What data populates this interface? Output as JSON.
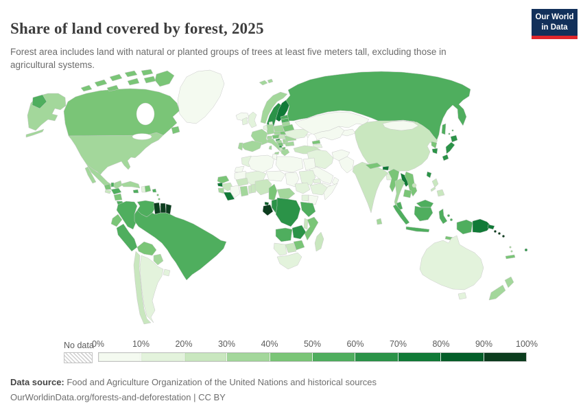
{
  "header": {
    "title": "Share of land covered by forest, 2025",
    "subtitle": "Forest area includes land with natural or planted groups of trees at least five meters tall, excluding those in agricultural systems.",
    "logo": {
      "line1": "Our World",
      "line2": "in Data",
      "bg": "#12305a",
      "accent": "#e0262b"
    }
  },
  "legend": {
    "no_data_label": "No data",
    "ticks": [
      "0%",
      "10%",
      "20%",
      "30%",
      "40%",
      "50%",
      "60%",
      "70%",
      "80%",
      "90%",
      "100%"
    ]
  },
  "footer": {
    "source_label": "Data source:",
    "source_text": " Food and Agriculture Organization of the United Nations and historical sources",
    "link_text": "OurWorldinData.org/forests-and-deforestation | CC BY"
  },
  "chart_data": {
    "type": "choropleth",
    "title": "Share of land covered by forest",
    "year": 2025,
    "unit": "% of land area",
    "bin_edges": [
      0,
      10,
      20,
      30,
      40,
      50,
      60,
      70,
      80,
      90,
      100
    ],
    "bin_colors": [
      "#f4faf0",
      "#e3f3dc",
      "#c9e7bf",
      "#a3d79b",
      "#7ac577",
      "#4fae5e",
      "#2b9348",
      "#117a37",
      "#045e29",
      "#0c3d1e"
    ],
    "no_data_color": "hatched-gray",
    "border_color": "#c9c9c9",
    "countries": {
      "Greenland": 0.5,
      "Canada": 41,
      "United States": 34,
      "Mexico": 34,
      "Guatemala": 43,
      "Belize": 56,
      "Honduras": 57,
      "El Salvador": 28,
      "Nicaragua": 42,
      "Costa Rica": 59,
      "Panama": 62,
      "Cuba": 31,
      "Jamaica": 55,
      "Haiti": 13,
      "Dominican Republic": 44,
      "Puerto Rico": 56,
      "Trinidad and Tobago": 44,
      "Colombia": 53,
      "Venezuela": 52,
      "Guyana": 93,
      "Suriname": 97,
      "French Guiana": 96,
      "Ecuador": 48,
      "Peru": 57,
      "Brazil": 59,
      "Bolivia": 46,
      "Paraguay": 38,
      "Uruguay": 12,
      "Argentina": 10,
      "Chile": 25,
      "Iceland": 0.5,
      "Norway": 34,
      "Sweden": 68,
      "Finland": 74,
      "Denmark": 16,
      "United Kingdom": 13,
      "Ireland": 11,
      "France": 32,
      "Spain": 37,
      "Portugal": 36,
      "Germany": 33,
      "Netherlands": 11,
      "Switzerland": 32,
      "Austria": 47,
      "Italy": 32,
      "Poland": 31,
      "Czechia": 35,
      "Slovakia": 40,
      "Hungary": 23,
      "Slovenia": 61,
      "Croatia": 35,
      "Bosnia and Herzegovina": 43,
      "Serbia": 31,
      "Montenegro": 61,
      "Albania": 29,
      "North Macedonia": 40,
      "Greece": 30,
      "Romania": 30,
      "Bulgaria": 36,
      "Ukraine": 17,
      "Belarus": 43,
      "Estonia": 54,
      "Latvia": 55,
      "Lithuania": 35,
      "Russia": 50,
      "Kazakhstan": 1.3,
      "Uzbekistan": 8,
      "Turkmenistan": 9,
      "Kyrgyzstan": 7,
      "Georgia": 40,
      "Azerbaijan": 14,
      "Turkey": 29,
      "Syria": 3,
      "Iraq": 2,
      "Iran": 11,
      "Saudi Arabia": 0.5,
      "Yemen": 1,
      "Oman": 0.1,
      "Jordan": 1,
      "Afghanistan": 2,
      "Pakistan": 5,
      "India": 24,
      "Nepal": 42,
      "Bhutan": 72,
      "Bangladesh": 14,
      "Sri Lanka": 34,
      "Myanmar": 42,
      "Thailand": 39,
      "Laos": 72,
      "Vietnam": 47,
      "Cambodia": 44,
      "Malaysia": 58,
      "Indonesia": 50,
      "Philippines": 24,
      "China": 24,
      "Mongolia": 9,
      "North Korea": 45,
      "South Korea": 64,
      "Japan": 68,
      "Taiwan": 60,
      "Morocco": 12,
      "Western Sahara": 2,
      "Algeria": 0.8,
      "Tunisia": 4.5,
      "Libya": 0.1,
      "Egypt": 0.1,
      "Mauritania": 0.3,
      "Mali": 10,
      "Niger": 0.9,
      "Chad": 3,
      "Sudan": 10,
      "Eritrea": 10,
      "Ethiopia": 15,
      "Somalia": 9,
      "Senegal": 41,
      "Guinea-Bissau": 70,
      "Guinea": 24,
      "Sierra Leone": 35,
      "Liberia": 79,
      "Cote d'Ivoire": 9,
      "Ghana": 35,
      "Togo": 21,
      "Benin": 27,
      "Burkina Faso": 22,
      "Nigeria": 23,
      "Cameroon": 42,
      "Central African Republic": 35,
      "South Sudan": 11,
      "Uganda": 12,
      "Kenya": 6,
      "Tanzania": 50,
      "Democratic Republic of Congo": 60,
      "Congo": 64,
      "Gabon": 91,
      "Equatorial Guinea": 86,
      "Angola": 52,
      "Zambia": 61,
      "Malawi": 23,
      "Mozambique": 46,
      "Zimbabwe": 44,
      "Botswana": 26,
      "Namibia": 11,
      "South Africa": 14,
      "Madagascar": 21,
      "Australia": 17,
      "New Zealand": 37,
      "Papua New Guinea": 79,
      "Solomon Islands": 90,
      "Vanuatu": 36,
      "Fiji": 62,
      "New Caledonia": 46,
      "Timor-Leste": 46
    }
  }
}
